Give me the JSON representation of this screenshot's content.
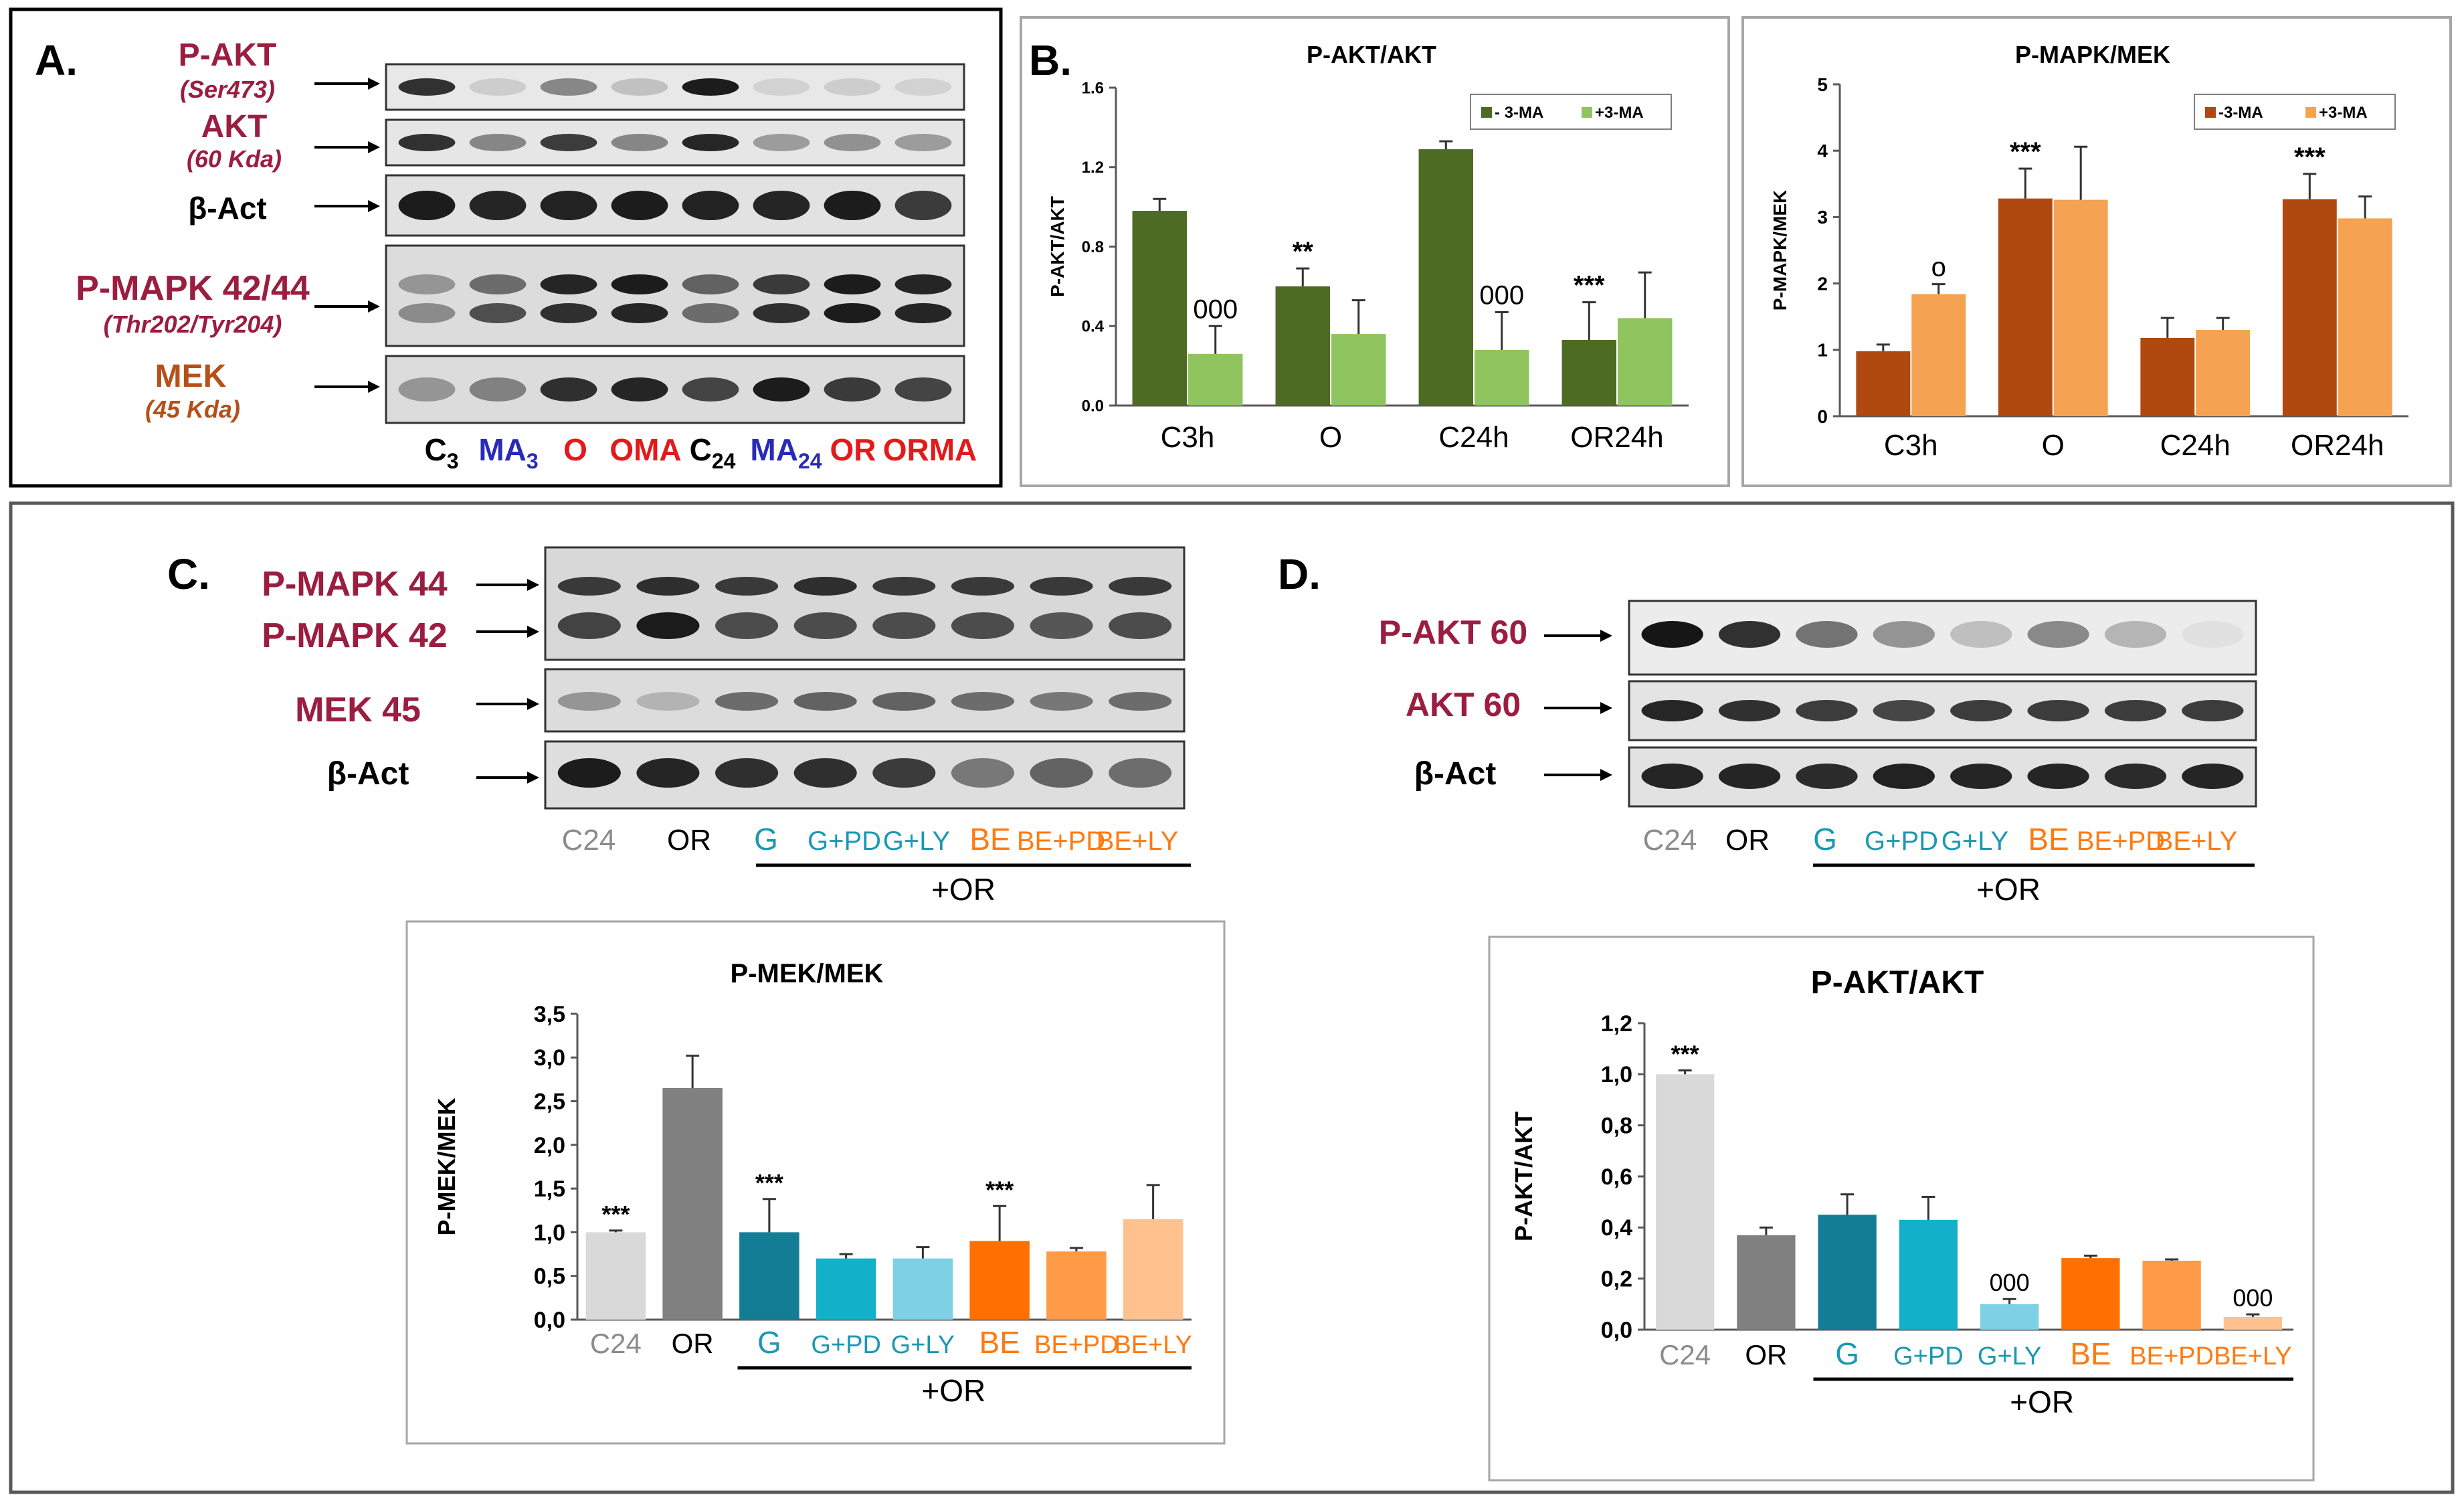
{
  "colors": {
    "maroon": "#9b1d3f",
    "blue": "#2a2ab8",
    "red": "#e41a1a",
    "brown": "#b5501a",
    "darkgreen": "#4e6b24",
    "lightgreen": "#8fc45e",
    "darkorange": "#b0490f",
    "lightorange": "#f5a252",
    "c24gray": "#d9d9d9",
    "orgray": "#808080",
    "teal_dark": "#147d96",
    "teal": "#13b0c9",
    "teal_light": "#7ed0e4",
    "orange": "#ff7000",
    "orange_mid": "#ff9a47",
    "orange_light": "#ffc18e",
    "labelteal": "#1b98b3",
    "labelorange": "#ff7a12"
  },
  "panel_a": {
    "letter": "A.",
    "labels": {
      "pakt": "P-AKT",
      "pakt_sub": "(Ser473)",
      "akt": "AKT",
      "akt_sub": "(60 Kda)",
      "bact": "β-Act",
      "pmapk": "P-MAPK 42/44",
      "pmapk_sub": "(Thr202/Tyr204)",
      "mek": "MEK",
      "mek_sub": "(45 Kda)"
    },
    "lanes": [
      {
        "base": "C",
        "sub": "3",
        "color": "#000000"
      },
      {
        "base": "MA",
        "sub": "3",
        "color": "#2a2ab8"
      },
      {
        "base": "O",
        "sub": "",
        "color": "#e41a1a"
      },
      {
        "base": "OMA",
        "sub": "",
        "color": "#e41a1a"
      },
      {
        "base": "C",
        "sub": "24",
        "color": "#000000"
      },
      {
        "base": "MA",
        "sub": "24",
        "color": "#2a2ab8"
      },
      {
        "base": "OR",
        "sub": "",
        "color": "#e41a1a"
      },
      {
        "base": "ORMA",
        "sub": "",
        "color": "#e41a1a"
      }
    ]
  },
  "panel_b": {
    "letter": "B."
  },
  "panel_c": {
    "letter": "C.",
    "labels": {
      "pmapk44": "P-MAPK 44",
      "pmapk42": "P-MAPK 42",
      "mek45": "MEK 45",
      "bact": "β-Act"
    },
    "lanes": [
      "C24",
      "OR",
      "G",
      "G+PD",
      "G+LY",
      "BE",
      "BE+PD",
      "BE+LY"
    ],
    "treatment_label": "+OR"
  },
  "panel_d": {
    "letter": "D.",
    "labels": {
      "pakt60": "P-AKT 60",
      "akt60": "AKT 60",
      "bact": "β-Act"
    },
    "lanes": [
      "C24",
      "OR",
      "G",
      "G+PD",
      "G+LY",
      "BE",
      "BE+PD",
      "BE+LY"
    ],
    "treatment_label": "+OR"
  },
  "chart_data": [
    {
      "id": "b1",
      "type": "bar",
      "title": "P-AKT/AKT",
      "ylabel": "P-AKT/AKT",
      "xlabel": "",
      "ylim": [
        0,
        1.6
      ],
      "yticks": [
        "0.0",
        "0.4",
        "0.8",
        "1.2",
        "1.6"
      ],
      "categories": [
        "C3h",
        "O",
        "C24h",
        "OR24h"
      ],
      "legend_position": "top-right",
      "series": [
        {
          "name": "- 3-MA",
          "color": "#4e6b24",
          "values": [
            0.98,
            0.6,
            1.29,
            0.33
          ],
          "errors": [
            0.06,
            0.09,
            0.04,
            0.19
          ],
          "annotations": [
            "",
            "**",
            "",
            "***"
          ]
        },
        {
          "name": "+3-MA",
          "color": "#8fc45e",
          "values": [
            0.26,
            0.36,
            0.28,
            0.44
          ],
          "errors": [
            0.14,
            0.17,
            0.19,
            0.23
          ],
          "annotations": [
            "000",
            "",
            "000",
            ""
          ]
        }
      ]
    },
    {
      "id": "b2",
      "type": "bar",
      "title": "P-MAPK/MEK",
      "ylabel": "P-MAPK/MEK",
      "xlabel": "",
      "ylim": [
        0,
        5
      ],
      "yticks": [
        "0",
        "1",
        "2",
        "3",
        "4",
        "5"
      ],
      "categories": [
        "C3h",
        "O",
        "C24h",
        "OR24h"
      ],
      "legend_position": "top-right",
      "series": [
        {
          "name": "-3-MA",
          "color": "#b0490f",
          "values": [
            0.98,
            3.28,
            1.18,
            3.27
          ],
          "errors": [
            0.1,
            0.45,
            0.3,
            0.38
          ],
          "annotations": [
            "",
            "***",
            "",
            "***"
          ]
        },
        {
          "name": "+3-MA",
          "color": "#f5a252",
          "values": [
            1.84,
            3.26,
            1.3,
            2.98
          ],
          "errors": [
            0.15,
            0.8,
            0.18,
            0.33
          ],
          "annotations": [
            "o",
            "",
            "",
            ""
          ]
        }
      ]
    },
    {
      "id": "c",
      "type": "bar",
      "title": "P-MEK/MEK",
      "ylabel": "P-MEK/MEK",
      "xlabel": "",
      "ylim": [
        0,
        3.5
      ],
      "yticks": [
        "0,0",
        "0,5",
        "1,0",
        "1,5",
        "2,0",
        "2,5",
        "3,0",
        "3,5"
      ],
      "categories": [
        "C24",
        "OR",
        "G",
        "G+PD",
        "G+LY",
        "BE",
        "BE+PD",
        "BE+LY"
      ],
      "treatment_label": "+OR",
      "values": [
        1.0,
        2.65,
        1.0,
        0.7,
        0.7,
        0.9,
        0.78,
        1.15
      ],
      "errors": [
        0.02,
        0.37,
        0.38,
        0.05,
        0.13,
        0.4,
        0.04,
        0.39
      ],
      "annotations": [
        "***",
        "",
        "***",
        "",
        "",
        "***",
        "",
        ""
      ],
      "colors": [
        "#d9d9d9",
        "#808080",
        "#147d96",
        "#13b0c9",
        "#7ed0e4",
        "#ff7000",
        "#ff9a47",
        "#ffc18e"
      ]
    },
    {
      "id": "d",
      "type": "bar",
      "title": "P-AKT/AKT",
      "ylabel": "P-AKT/AKT",
      "xlabel": "",
      "ylim": [
        0,
        1.2
      ],
      "yticks": [
        "0,0",
        "0,2",
        "0,4",
        "0,6",
        "0,8",
        "1,0",
        "1,2"
      ],
      "categories": [
        "C24",
        "OR",
        "G",
        "G+PD",
        "G+LY",
        "BE",
        "BE+PD",
        "BE+LY"
      ],
      "treatment_label": "+OR",
      "values": [
        1.0,
        0.37,
        0.45,
        0.43,
        0.1,
        0.28,
        0.27,
        0.05
      ],
      "errors": [
        0.015,
        0.03,
        0.08,
        0.09,
        0.02,
        0.01,
        0.005,
        0.01
      ],
      "annotations": [
        "***",
        "",
        "",
        "",
        "000",
        "",
        "",
        "000"
      ],
      "colors": [
        "#d9d9d9",
        "#808080",
        "#147d96",
        "#13b0c9",
        "#7ed0e4",
        "#ff7000",
        "#ff9a47",
        "#ffc18e"
      ]
    }
  ]
}
